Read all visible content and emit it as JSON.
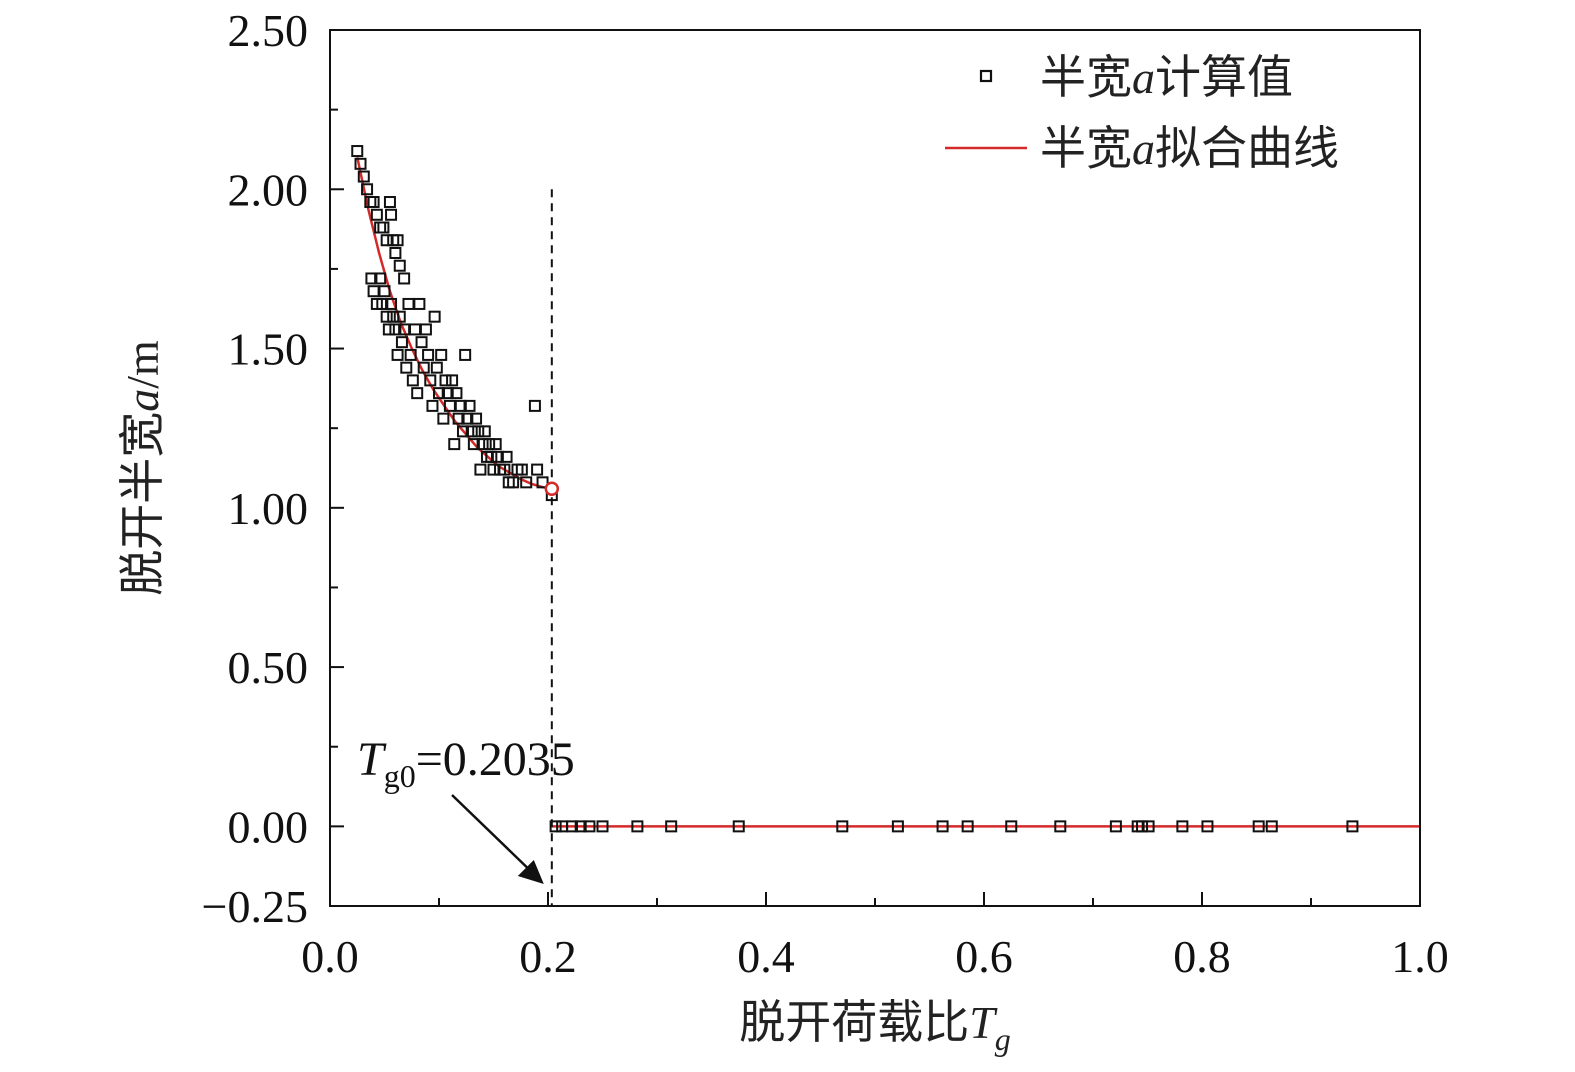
{
  "chart_data": {
    "type": "scatter",
    "xlabel": {
      "main": "脱开荷载比",
      "var": "T",
      "sub": "g"
    },
    "ylabel": {
      "main": "脱开半宽",
      "var": "a",
      "unit": "/m"
    },
    "xlim": [
      0.0,
      1.0
    ],
    "ylim": [
      -0.25,
      2.5
    ],
    "xticks": [
      0.0,
      0.2,
      0.4,
      0.6,
      0.8,
      1.0
    ],
    "xtick_labels": [
      "0.0",
      "0.2",
      "0.4",
      "0.6",
      "0.8",
      "1.0"
    ],
    "yticks": [
      -0.25,
      0.0,
      0.5,
      1.0,
      1.5,
      2.0,
      2.5
    ],
    "ytick_labels": [
      "−0.25",
      "0.00",
      "0.50",
      "1.00",
      "1.50",
      "2.00",
      "2.50"
    ],
    "legend": {
      "position": "top-right",
      "entries": [
        {
          "pre": "半宽",
          "var": "a",
          "post": "计算值",
          "kind": "marker"
        },
        {
          "pre": "半宽",
          "var": "a",
          "post": "拟合曲线",
          "kind": "line"
        }
      ]
    },
    "colors": {
      "fit_line": "#d42a2a",
      "markers": "#111111",
      "threshold": "#111111"
    },
    "annotation": {
      "var": "T",
      "sub": "g0",
      "text": "=0.2035",
      "x": 0.2035
    },
    "threshold_line": {
      "x": 0.2035,
      "y_range": [
        -0.25,
        2.0
      ]
    },
    "series": [
      {
        "name": "半宽a计算值",
        "kind": "scatter",
        "points": [
          [
            0.025,
            2.12
          ],
          [
            0.028,
            2.08
          ],
          [
            0.031,
            2.04
          ],
          [
            0.034,
            2.0
          ],
          [
            0.037,
            1.96
          ],
          [
            0.04,
            1.96
          ],
          [
            0.043,
            1.92
          ],
          [
            0.046,
            1.88
          ],
          [
            0.049,
            1.88
          ],
          [
            0.052,
            1.84
          ],
          [
            0.055,
            1.96
          ],
          [
            0.056,
            1.92
          ],
          [
            0.058,
            1.84
          ],
          [
            0.06,
            1.8
          ],
          [
            0.062,
            1.84
          ],
          [
            0.064,
            1.76
          ],
          [
            0.068,
            1.72
          ],
          [
            0.038,
            1.72
          ],
          [
            0.04,
            1.68
          ],
          [
            0.043,
            1.64
          ],
          [
            0.046,
            1.72
          ],
          [
            0.048,
            1.64
          ],
          [
            0.05,
            1.68
          ],
          [
            0.052,
            1.6
          ],
          [
            0.054,
            1.56
          ],
          [
            0.056,
            1.64
          ],
          [
            0.058,
            1.6
          ],
          [
            0.06,
            1.56
          ],
          [
            0.062,
            1.48
          ],
          [
            0.064,
            1.6
          ],
          [
            0.066,
            1.52
          ],
          [
            0.068,
            1.56
          ],
          [
            0.07,
            1.44
          ],
          [
            0.072,
            1.64
          ],
          [
            0.074,
            1.48
          ],
          [
            0.076,
            1.4
          ],
          [
            0.078,
            1.56
          ],
          [
            0.08,
            1.36
          ],
          [
            0.082,
            1.64
          ],
          [
            0.084,
            1.52
          ],
          [
            0.086,
            1.44
          ],
          [
            0.088,
            1.56
          ],
          [
            0.09,
            1.48
          ],
          [
            0.092,
            1.4
          ],
          [
            0.094,
            1.32
          ],
          [
            0.096,
            1.6
          ],
          [
            0.098,
            1.44
          ],
          [
            0.1,
            1.36
          ],
          [
            0.102,
            1.48
          ],
          [
            0.104,
            1.28
          ],
          [
            0.106,
            1.4
          ],
          [
            0.108,
            1.36
          ],
          [
            0.11,
            1.32
          ],
          [
            0.112,
            1.4
          ],
          [
            0.114,
            1.2
          ],
          [
            0.116,
            1.36
          ],
          [
            0.118,
            1.28
          ],
          [
            0.12,
            1.32
          ],
          [
            0.122,
            1.24
          ],
          [
            0.124,
            1.48
          ],
          [
            0.126,
            1.28
          ],
          [
            0.128,
            1.32
          ],
          [
            0.13,
            1.24
          ],
          [
            0.132,
            1.2
          ],
          [
            0.134,
            1.28
          ],
          [
            0.136,
            1.24
          ],
          [
            0.138,
            1.12
          ],
          [
            0.14,
            1.2
          ],
          [
            0.142,
            1.24
          ],
          [
            0.144,
            1.16
          ],
          [
            0.146,
            1.2
          ],
          [
            0.148,
            1.16
          ],
          [
            0.15,
            1.12
          ],
          [
            0.152,
            1.2
          ],
          [
            0.154,
            1.16
          ],
          [
            0.156,
            1.12
          ],
          [
            0.16,
            1.12
          ],
          [
            0.162,
            1.16
          ],
          [
            0.164,
            1.08
          ],
          [
            0.168,
            1.08
          ],
          [
            0.172,
            1.12
          ],
          [
            0.176,
            1.12
          ],
          [
            0.18,
            1.08
          ],
          [
            0.188,
            1.32
          ],
          [
            0.19,
            1.12
          ],
          [
            0.195,
            1.08
          ],
          [
            0.2035,
            1.04
          ],
          [
            0.207,
            0.0
          ],
          [
            0.213,
            0.0
          ],
          [
            0.222,
            0.0
          ],
          [
            0.23,
            0.0
          ],
          [
            0.238,
            0.0
          ],
          [
            0.25,
            0.0
          ],
          [
            0.282,
            0.0
          ],
          [
            0.313,
            0.0
          ],
          [
            0.375,
            0.0
          ],
          [
            0.47,
            0.0
          ],
          [
            0.521,
            0.0
          ],
          [
            0.562,
            0.0
          ],
          [
            0.585,
            0.0
          ],
          [
            0.625,
            0.0
          ],
          [
            0.67,
            0.0
          ],
          [
            0.721,
            0.0
          ],
          [
            0.741,
            0.0
          ],
          [
            0.745,
            0.0
          ],
          [
            0.751,
            0.0
          ],
          [
            0.782,
            0.0
          ],
          [
            0.805,
            0.0
          ],
          [
            0.852,
            0.0
          ],
          [
            0.864,
            0.0
          ],
          [
            0.938,
            0.0
          ]
        ]
      },
      {
        "name": "半宽a拟合曲线",
        "kind": "line",
        "segments": [
          [
            [
              0.025,
              2.1
            ],
            [
              0.035,
              1.94
            ],
            [
              0.045,
              1.8
            ],
            [
              0.055,
              1.68
            ],
            [
              0.065,
              1.58
            ],
            [
              0.075,
              1.5
            ],
            [
              0.085,
              1.43
            ],
            [
              0.095,
              1.37
            ],
            [
              0.105,
              1.32
            ],
            [
              0.115,
              1.27
            ],
            [
              0.125,
              1.23
            ],
            [
              0.135,
              1.19
            ],
            [
              0.145,
              1.16
            ],
            [
              0.155,
              1.13
            ],
            [
              0.165,
              1.11
            ],
            [
              0.175,
              1.09
            ],
            [
              0.185,
              1.075
            ],
            [
              0.195,
              1.065
            ],
            [
              0.2035,
              1.06
            ]
          ],
          [
            [
              0.2035,
              0.0
            ],
            [
              1.0,
              0.0
            ]
          ]
        ],
        "end_marker": [
          0.2035,
          1.06
        ]
      }
    ]
  }
}
